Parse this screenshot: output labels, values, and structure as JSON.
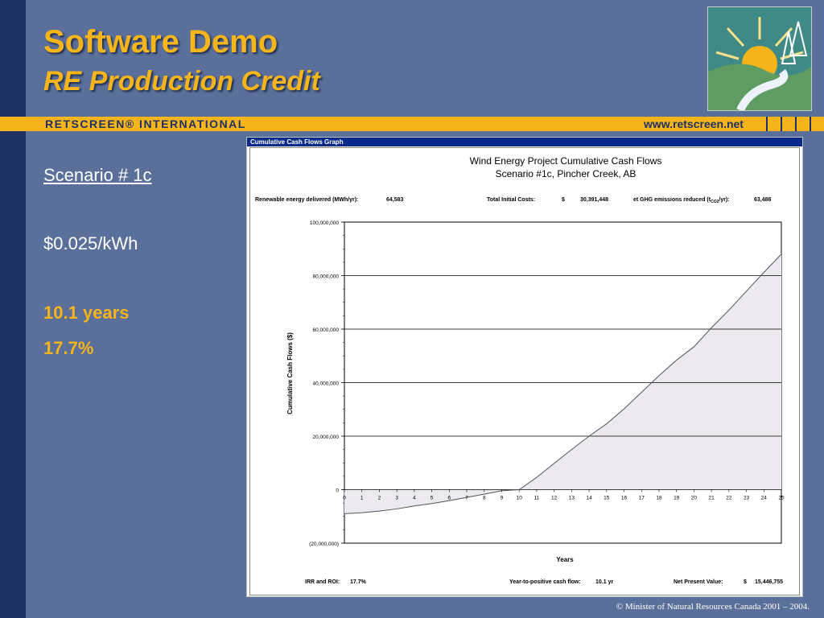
{
  "slide": {
    "title": "Software Demo",
    "subtitle": "RE Production Credit",
    "brand": "RETSCREEN® INTERNATIONAL",
    "url": "www.retscreen.net",
    "copyright": "© Minister of Natural Resources Canada 2001 – 2004."
  },
  "sidebar": {
    "scenario": "Scenario # 1c",
    "rate": "$0.025/kWh",
    "payback": "10.1 years",
    "irr": "17.7%"
  },
  "panel": {
    "header": "Cumulative Cash Flows Graph",
    "stats": {
      "energy_label": "Renewable energy delivered (MWh/yr):",
      "energy_value": "64,583",
      "cost_label": "Total Initial Costs:",
      "cost_currency": "$",
      "cost_value": "30,391,448",
      "ghg_label": "et GHG emissions reduced (t",
      "ghg_sub": "CO2",
      "ghg_label_end": "/yr):",
      "ghg_value": "63,486",
      "irr_label": "IRR and ROI:",
      "irr_value": "17.7%",
      "payback_label": "Year-to-positive cash flow:",
      "payback_value": "10.1 yr",
      "npv_label": "Net Present Value:",
      "npv_currency": "$",
      "npv_value": "15,446,755"
    }
  },
  "colors": {
    "background": "#5a6f9a",
    "accent": "#f7b51c",
    "dark_strip": "#1f3164",
    "fill": "#ece9f1"
  },
  "chart_data": {
    "type": "area",
    "title": "Wind Energy Project Cumulative Cash Flows",
    "subtitle": "Scenario #1c, Pincher Creek, AB",
    "xlabel": "Years",
    "ylabel": "Cumulative Cash Flows ($)",
    "ylim": [
      -20000000,
      100000000
    ],
    "y_ticks": [
      -20000000,
      0,
      20000000,
      40000000,
      60000000,
      80000000,
      100000000
    ],
    "y_tick_labels": [
      "(20,000,000)",
      "0",
      "20,000,000",
      "40,000,000",
      "60,000,000",
      "80,000,000",
      "100,000,000"
    ],
    "x": [
      0,
      1,
      2,
      3,
      4,
      5,
      6,
      7,
      8,
      9,
      10,
      11,
      12,
      13,
      14,
      15,
      16,
      17,
      18,
      19,
      20,
      21,
      22,
      23,
      24,
      25
    ],
    "x_tick_labels": [
      "0",
      "1",
      "2",
      "3",
      "4",
      "5",
      "6",
      "7",
      "8",
      "9",
      "10",
      "11",
      "12",
      "13",
      "14",
      "15",
      "16",
      "17",
      "18",
      "19",
      "20",
      "21",
      "22",
      "23",
      "24",
      "25"
    ],
    "values": [
      -9000000,
      -8600000,
      -8000000,
      -7200000,
      -6100000,
      -5200000,
      -4100000,
      -2900000,
      -1700000,
      -400000,
      0,
      4600000,
      9800000,
      15000000,
      20000000,
      24600000,
      30200000,
      36400000,
      42600000,
      48400000,
      53400000,
      60500000,
      67100000,
      74200000,
      81200000,
      88000000
    ],
    "grid": true
  }
}
